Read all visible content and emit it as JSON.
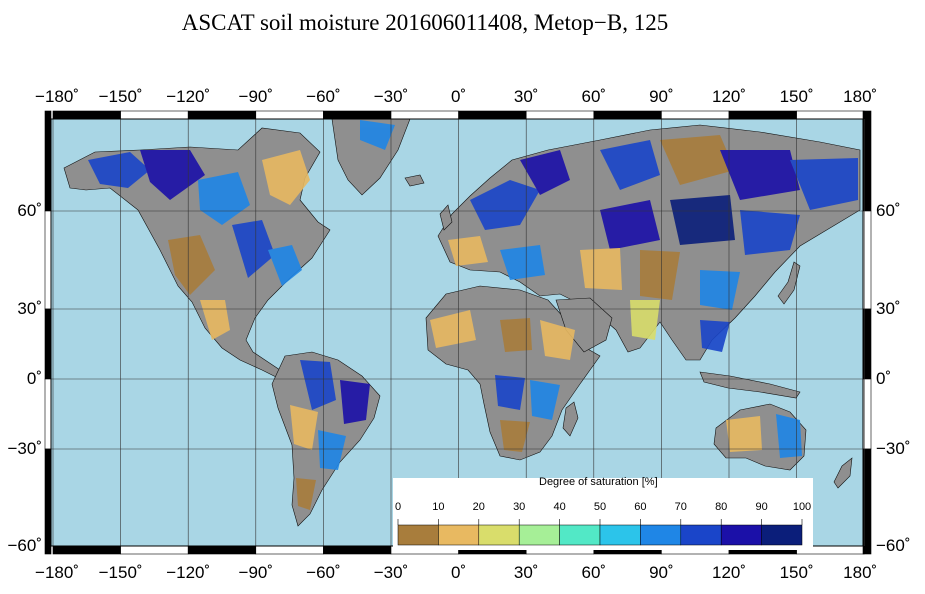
{
  "title": "ASCAT soil moisture 201606011408, Metop−B, 125",
  "lon_labels": [
    "−180˚",
    "−150˚",
    "−120˚",
    "−90˚",
    "−60˚",
    "−30˚",
    "0˚",
    "30˚",
    "60˚",
    "90˚",
    "120˚",
    "150˚",
    "180˚"
  ],
  "lat_labels": [
    "60˚",
    "30˚",
    "0˚",
    "−30˚",
    "−60˚"
  ],
  "colorbar": {
    "title": "Degree of saturation [%]",
    "labels": [
      "0",
      "10",
      "20",
      "30",
      "40",
      "50",
      "60",
      "70",
      "80",
      "90",
      "100"
    ],
    "colors": [
      "#a87d3c",
      "#e8b961",
      "#d9dd6b",
      "#a6ef97",
      "#52e8c6",
      "#2cc4ea",
      "#1f86e6",
      "#1a45c9",
      "#1b10a8",
      "#0b1e7a"
    ]
  },
  "colors": {
    "ocean": "#a9d6e5",
    "land_nodata": "#8f8f8f",
    "grid": "#222222"
  }
}
